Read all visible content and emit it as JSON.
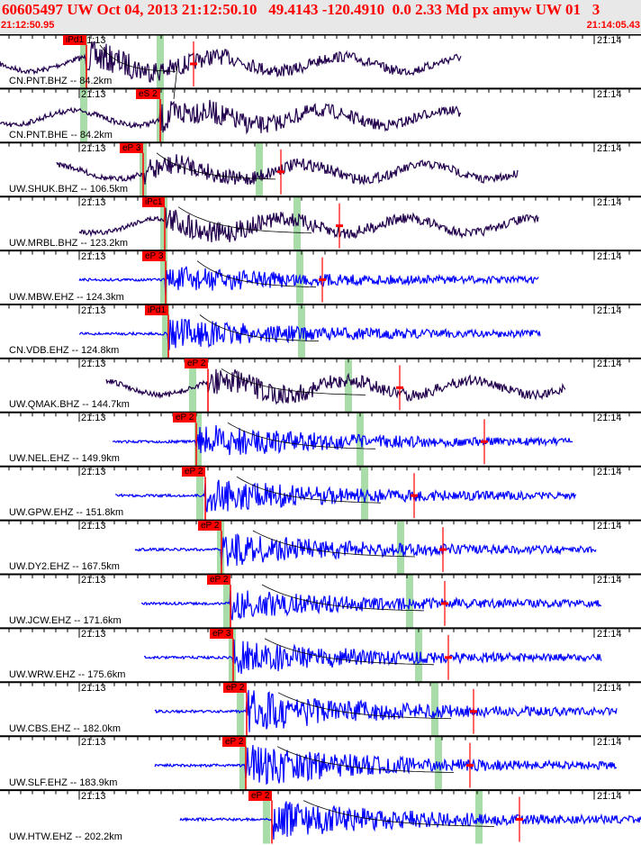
{
  "header": {
    "title": "60605497 UW Oct 04, 2013 21:12:50.10   49.4143 -120.4910  0.0 2.33 Md px amyw UW 01   3",
    "start_time": "21:12:50.95",
    "end_time": "21:14:05.43"
  },
  "time_labels": {
    "left": "21:13",
    "right": "21:14"
  },
  "colors": {
    "broadband": "#22004d",
    "short_period": "#0000ff",
    "pick": "#ff0000",
    "window": "#a8dca8"
  },
  "channels": [
    {
      "label": "CN.PNT.BHZ -- 84.2km",
      "pick": "iPd1"
    },
    {
      "label": "CN.PNT.BHE -- 84.2km",
      "pick": "eS 2"
    },
    {
      "label": "UW.SHUK.BHZ -- 106.5km",
      "pick": "eP 3"
    },
    {
      "label": "UW.MRBL.BHZ -- 123.2km",
      "pick": "iPc1"
    },
    {
      "label": "UW.MBW.EHZ -- 124.3km",
      "pick": "eP 3"
    },
    {
      "label": "CN.VDB.EHZ -- 124.8km",
      "pick": "iPd1"
    },
    {
      "label": "UW.QMAK.BHZ -- 144.7km",
      "pick": "eP 2"
    },
    {
      "label": "UW.NEL.EHZ -- 149.9km",
      "pick": "eP 2"
    },
    {
      "label": "UW.GPW.EHZ -- 151.8km",
      "pick": "eP 2"
    },
    {
      "label": "UW.DY2.EHZ -- 167.5km",
      "pick": "eP 2"
    },
    {
      "label": "UW.JCW.EHZ -- 171.6km",
      "pick": "eP 2"
    },
    {
      "label": "UW.WRW.EHZ -- 175.6km",
      "pick": "eP 3"
    },
    {
      "label": "UW.CBS.EHZ -- 182.0km",
      "pick": "eP 2"
    },
    {
      "label": "UW.SLF.EHZ -- 183.9km",
      "pick": "eP 2"
    },
    {
      "label": "UW.HTW.EHZ -- 202.2km",
      "pick": "eP 2"
    }
  ]
}
